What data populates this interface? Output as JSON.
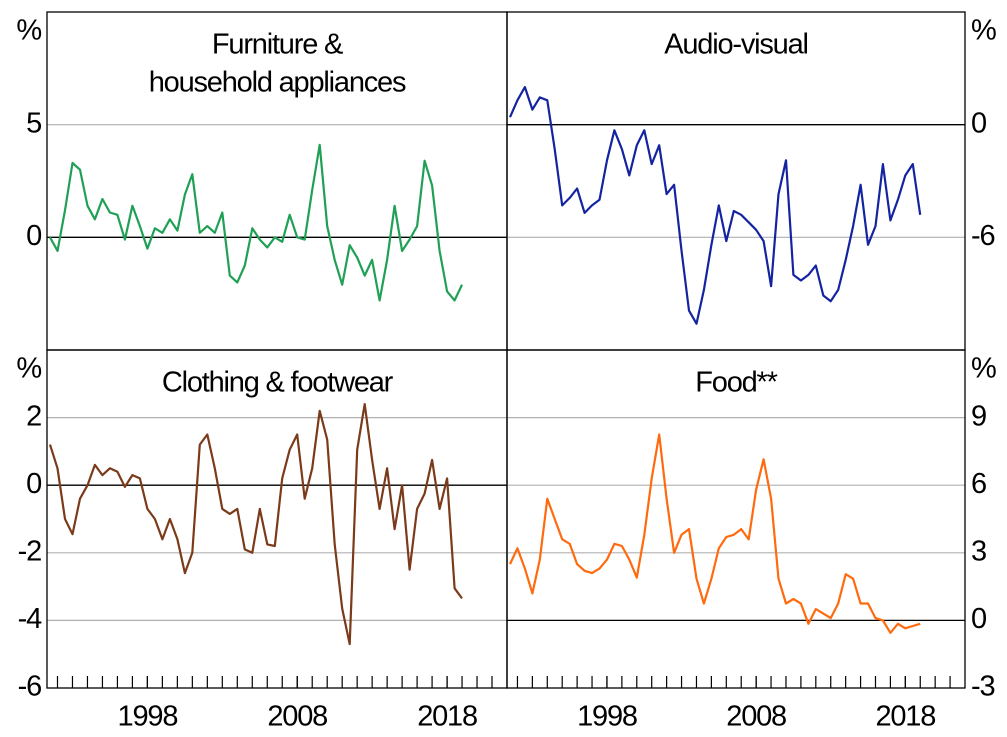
{
  "chart_data": [
    {
      "type": "line",
      "title": [
        "Furniture &",
        "household appliances"
      ],
      "y_unit": "%",
      "y_axis_side": "left",
      "color": "#1fa055",
      "xlim": [
        1991.3,
        2022
      ],
      "ylim": [
        -5,
        10
      ],
      "yticks": [
        0,
        5
      ],
      "x": [
        1991.5,
        1992,
        1992.5,
        1993,
        1993.5,
        1994,
        1994.5,
        1995,
        1995.5,
        1996,
        1996.5,
        1997,
        1997.5,
        1998,
        1998.5,
        1999,
        1999.5,
        2000,
        2000.5,
        2001,
        2001.5,
        2002,
        2002.5,
        2003,
        2003.5,
        2004,
        2004.5,
        2005,
        2005.5,
        2006,
        2006.5,
        2007,
        2007.5,
        2008,
        2008.5,
        2009,
        2009.5,
        2010,
        2010.5,
        2011,
        2011.5,
        2012,
        2012.5,
        2013,
        2013.5,
        2014,
        2014.5,
        2015,
        2015.5,
        2016,
        2016.5,
        2017,
        2017.5,
        2018,
        2018.5,
        2019
      ],
      "values": [
        0,
        -0.6,
        1.2,
        3.3,
        3.0,
        1.4,
        0.8,
        1.7,
        1.1,
        1.0,
        -0.1,
        1.4,
        0.5,
        -0.5,
        0.4,
        0.2,
        0.8,
        0.3,
        1.9,
        2.8,
        0.2,
        0.5,
        0.2,
        1.1,
        -1.7,
        -2.0,
        -1.25,
        0.4,
        -0.1,
        -0.45,
        0,
        -0.2,
        1.0,
        0,
        -0.1,
        2.1,
        4.1,
        0.5,
        -1.0,
        -2.1,
        -0.35,
        -0.9,
        -1.7,
        -1.0,
        -2.8,
        -1.0,
        1.4,
        -0.6,
        -0.1,
        0.5,
        3.4,
        2.3,
        -0.6,
        -2.4,
        -2.8,
        -2.1
      ]
    },
    {
      "type": "line",
      "title": [
        "Audio-visual"
      ],
      "y_unit": "%",
      "y_axis_side": "right",
      "color": "#1424a0",
      "xlim": [
        1991.3,
        2022
      ],
      "ylim": [
        -12,
        6
      ],
      "yticks": [
        -6,
        0
      ],
      "x": [
        1991.5,
        1992,
        1992.5,
        1993,
        1993.5,
        1994,
        1994.5,
        1995,
        1995.5,
        1996,
        1996.5,
        1997,
        1997.5,
        1998,
        1998.5,
        1999,
        1999.5,
        2000,
        2000.5,
        2001,
        2001.5,
        2002,
        2002.5,
        2003,
        2003.5,
        2004,
        2004.5,
        2005,
        2005.5,
        2006,
        2006.5,
        2007,
        2007.5,
        2008,
        2008.5,
        2009,
        2009.5,
        2010,
        2010.5,
        2011,
        2011.5,
        2012,
        2012.5,
        2013,
        2013.5,
        2014,
        2014.5,
        2015,
        2015.5,
        2016,
        2016.5,
        2017,
        2017.5,
        2018,
        2018.5,
        2019
      ],
      "values": [
        0.4,
        1.3,
        2.0,
        0.8,
        1.45,
        1.3,
        -1.3,
        -4.3,
        -3.9,
        -3.4,
        -4.7,
        -4.3,
        -4.0,
        -1.9,
        -0.3,
        -1.3,
        -2.7,
        -1.1,
        -0.3,
        -2.1,
        -1.1,
        -3.7,
        -3.2,
        -6.7,
        -9.9,
        -10.6,
        -8.8,
        -6.4,
        -4.3,
        -6.2,
        -4.6,
        -4.8,
        -5.2,
        -5.6,
        -6.2,
        -8.6,
        -3.7,
        -1.9,
        -8.0,
        -8.3,
        -8.0,
        -7.5,
        -9.1,
        -9.4,
        -8.8,
        -7.2,
        -5.4,
        -3.2,
        -6.4,
        -5.4,
        -2.1,
        -5.1,
        -4.0,
        -2.7,
        -2.1,
        -4.8
      ]
    },
    {
      "type": "line",
      "title": [
        "Clothing & footwear"
      ],
      "y_unit": "%",
      "y_axis_side": "left",
      "color": "#7b3a1a",
      "xlim": [
        1991.3,
        2022
      ],
      "ylim": [
        -6,
        4
      ],
      "yticks": [
        -6,
        -4,
        -2,
        0,
        2
      ],
      "xticks": [
        1998,
        2008,
        2018
      ],
      "x": [
        1991.5,
        1992,
        1992.5,
        1993,
        1993.5,
        1994,
        1994.5,
        1995,
        1995.5,
        1996,
        1996.5,
        1997,
        1997.5,
        1998,
        1998.5,
        1999,
        1999.5,
        2000,
        2000.5,
        2001,
        2001.5,
        2002,
        2002.5,
        2003,
        2003.5,
        2004,
        2004.5,
        2005,
        2005.5,
        2006,
        2006.5,
        2007,
        2007.5,
        2008,
        2008.5,
        2009,
        2009.5,
        2010,
        2010.5,
        2011,
        2011.5,
        2012,
        2012.5,
        2013,
        2013.5,
        2014,
        2014.5,
        2015,
        2015.5,
        2016,
        2016.5,
        2017,
        2017.5,
        2018,
        2018.5,
        2019
      ],
      "values": [
        1.2,
        0.5,
        -1.0,
        -1.45,
        -0.4,
        0,
        0.6,
        0.3,
        0.5,
        0.4,
        -0.05,
        0.3,
        0.2,
        -0.7,
        -1.0,
        -1.6,
        -1.0,
        -1.6,
        -2.6,
        -2.0,
        1.2,
        1.5,
        0.5,
        -0.7,
        -0.85,
        -0.7,
        -1.9,
        -2.0,
        -0.7,
        -1.75,
        -1.8,
        0.2,
        1.05,
        1.5,
        -0.4,
        0.5,
        2.2,
        1.35,
        -1.75,
        -3.65,
        -4.7,
        1.05,
        2.4,
        0.75,
        -0.7,
        0.5,
        -1.3,
        0,
        -2.5,
        -0.7,
        -0.25,
        0.75,
        -0.7,
        0.2,
        -3.05,
        -3.35
      ]
    },
    {
      "type": "line",
      "title": [
        "Food**"
      ],
      "y_unit": "%",
      "y_axis_side": "right",
      "color": "#ff6a0e",
      "xlim": [
        1991.3,
        2022
      ],
      "ylim": [
        -3,
        12
      ],
      "yticks": [
        -3,
        0,
        3,
        6,
        9
      ],
      "xticks": [
        1998,
        2008,
        2018
      ],
      "x": [
        1991.5,
        1992,
        1992.5,
        1993,
        1993.5,
        1994,
        1994.5,
        1995,
        1995.5,
        1996,
        1996.5,
        1997,
        1997.5,
        1998,
        1998.5,
        1999,
        1999.5,
        2000,
        2000.5,
        2001,
        2001.5,
        2002,
        2002.5,
        2003,
        2003.5,
        2004,
        2004.5,
        2005,
        2005.5,
        2006,
        2006.5,
        2007,
        2007.5,
        2008,
        2008.5,
        2009,
        2009.5,
        2010,
        2010.5,
        2011,
        2011.5,
        2012,
        2012.5,
        2013,
        2013.5,
        2014,
        2014.5,
        2015,
        2015.5,
        2016,
        2016.5,
        2017,
        2017.5,
        2018,
        2018.5,
        2019
      ],
      "values": [
        2.5,
        3.2,
        2.3,
        1.2,
        2.7,
        5.4,
        4.5,
        3.6,
        3.4,
        2.5,
        2.2,
        2.1,
        2.3,
        2.7,
        3.4,
        3.3,
        2.7,
        1.9,
        3.8,
        6.3,
        8.25,
        5.4,
        3.0,
        3.8,
        4.05,
        1.85,
        0.75,
        1.85,
        3.2,
        3.7,
        3.8,
        4.05,
        3.6,
        5.8,
        7.15,
        5.4,
        1.85,
        0.75,
        0.95,
        0.75,
        -0.15,
        0.5,
        0.3,
        0.1,
        0.75,
        2.05,
        1.85,
        0.75,
        0.75,
        0.1,
        0,
        -0.55,
        -0.15,
        -0.35,
        -0.25,
        -0.15
      ]
    }
  ]
}
